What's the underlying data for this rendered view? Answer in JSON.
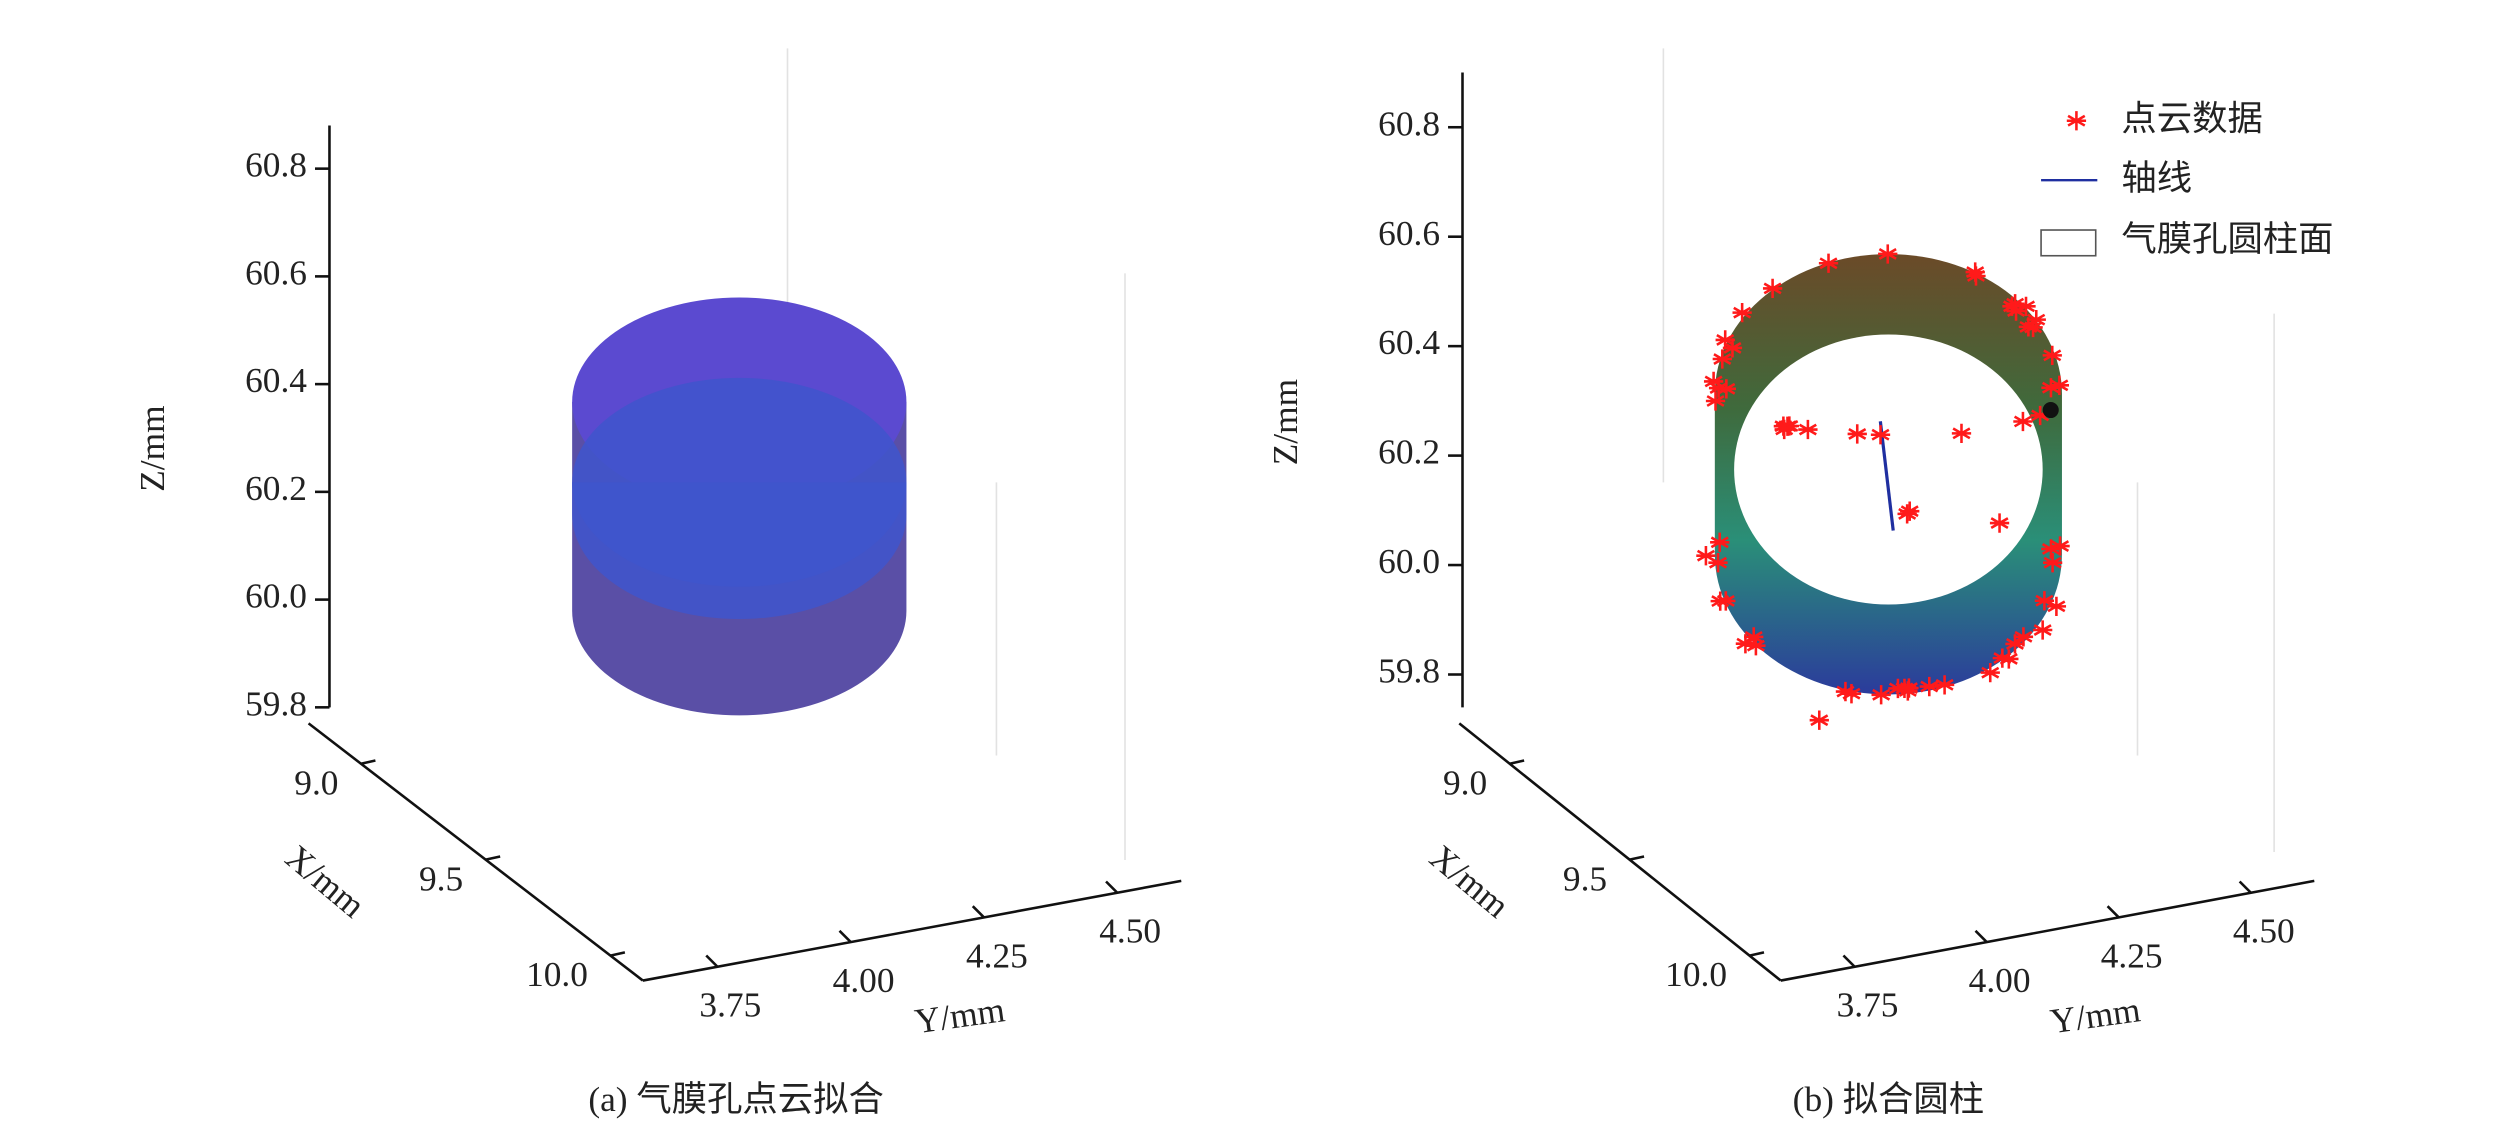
{
  "chart_data": [
    {
      "type": "surface3d",
      "caption": "(a) 气膜孔点云拟合",
      "xlabel": "X/mm",
      "ylabel": "Y/mm",
      "zlabel": "Z/mm",
      "xlim": [
        8.79,
        10.13
      ],
      "ylim": [
        3.61,
        4.62
      ],
      "zlim": [
        59.8,
        60.88
      ],
      "xticks": [
        {
          "value": 9,
          "label": "9.0"
        },
        9.5,
        {
          "value": 10,
          "label": "10.0"
        }
      ],
      "yticks": [
        3.75,
        {
          "value": 4,
          "label": "4.00"
        },
        4.25,
        {
          "value": 4.5,
          "label": "4.50"
        }
      ],
      "zticks": [
        60.8,
        60.6,
        60.4,
        60.2,
        {
          "value": 60,
          "label": "60.0"
        },
        59.8
      ]
    },
    {
      "type": "scatter3d",
      "caption": "(b) 拟合圆柱",
      "xlabel": "X/mm",
      "ylabel": "Y/mm",
      "zlabel": "Z/mm",
      "xlim": [
        8.79,
        10.13
      ],
      "ylim": [
        3.61,
        4.62
      ],
      "zlim": [
        59.74,
        60.9
      ],
      "xticks": [
        {
          "value": 9,
          "label": "9.0"
        },
        9.5,
        {
          "value": 10,
          "label": "10.0"
        }
      ],
      "yticks": [
        3.75,
        {
          "value": 4,
          "label": "4.00"
        },
        4.25,
        {
          "value": 4.5,
          "label": "4.50"
        }
      ],
      "zticks": [
        60.8,
        60.6,
        60.4,
        60.2,
        {
          "value": 60,
          "label": "60.0"
        },
        59.8
      ],
      "series": [
        {
          "name": "点云数据",
          "color": "#ff1a1a"
        },
        {
          "name": "轴线",
          "color": "#1f2fa0"
        },
        {
          "name": "气膜孔圆柱面",
          "color": "#555555"
        }
      ]
    }
  ]
}
